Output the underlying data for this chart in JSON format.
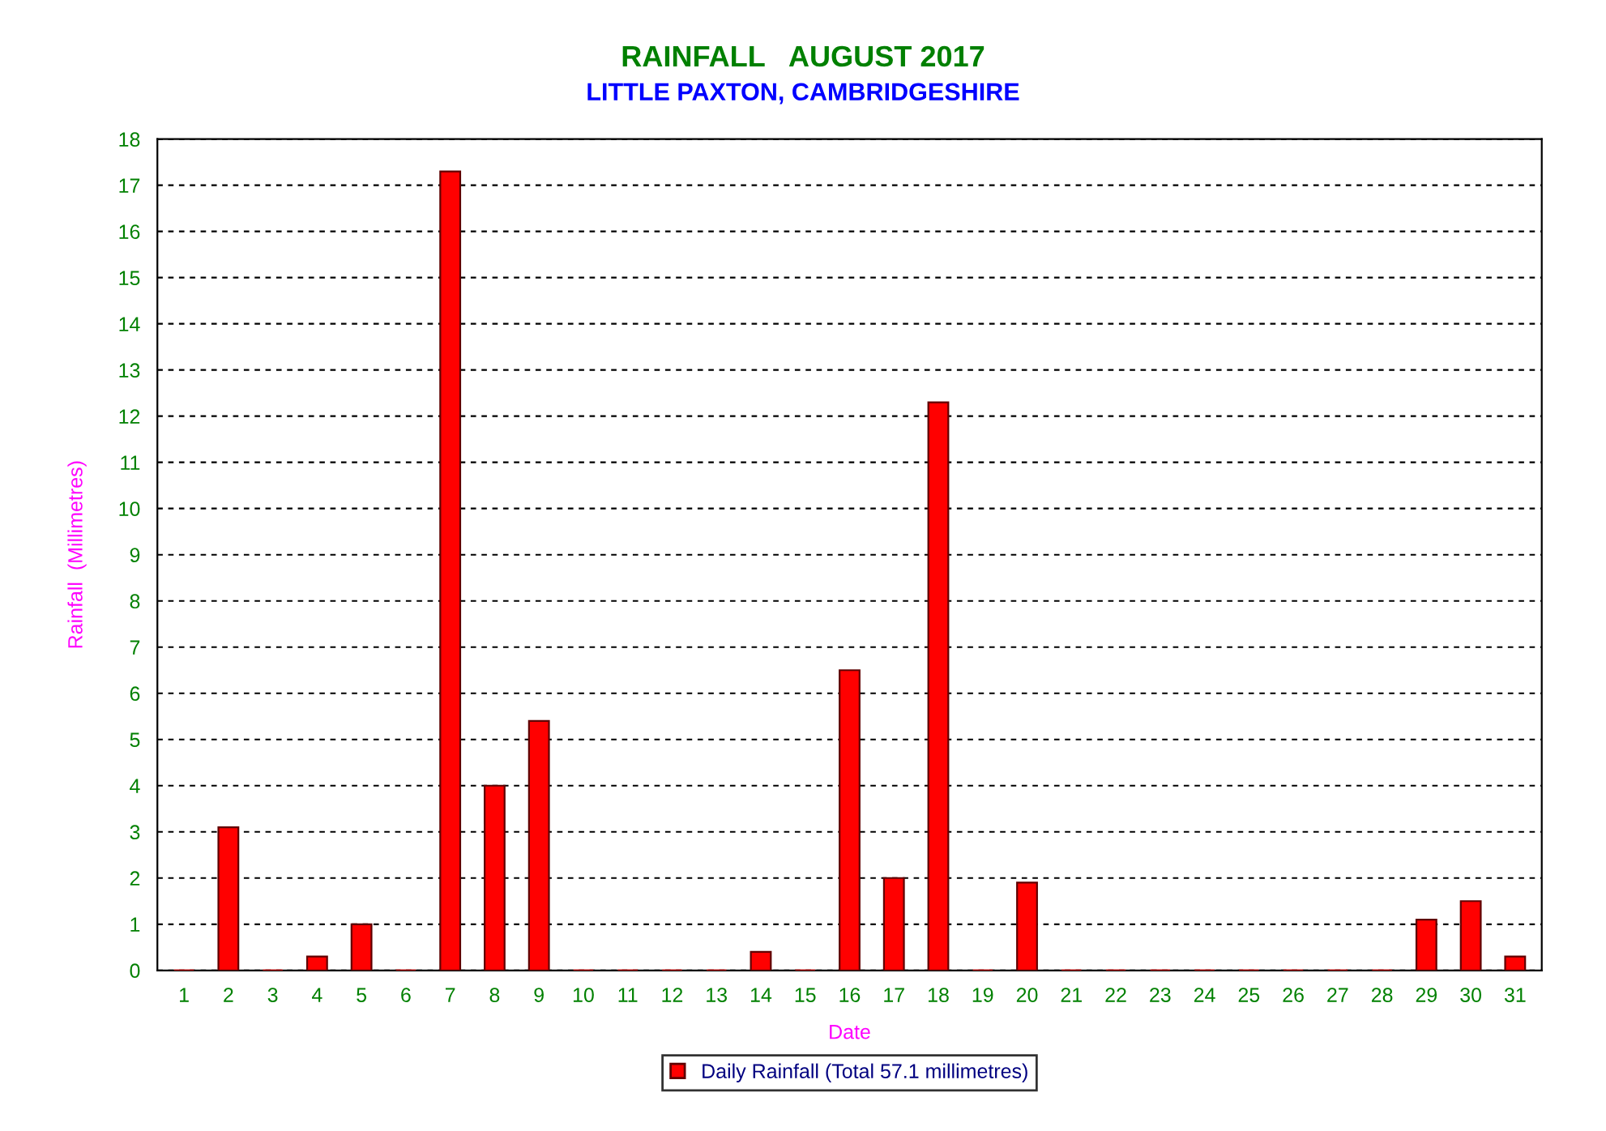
{
  "chart_data": {
    "type": "bar",
    "title": "RAINFALL   AUGUST 2017",
    "subtitle": "LITTLE PAXTON, CAMBRIDGESHIRE",
    "xlabel": "Date",
    "ylabel": "Rainfall  (Millimetres)",
    "categories": [
      "1",
      "2",
      "3",
      "4",
      "5",
      "6",
      "7",
      "8",
      "9",
      "10",
      "11",
      "12",
      "13",
      "14",
      "15",
      "16",
      "17",
      "18",
      "19",
      "20",
      "21",
      "22",
      "23",
      "24",
      "25",
      "26",
      "27",
      "28",
      "29",
      "30",
      "31"
    ],
    "series": [
      {
        "name": "Daily Rainfall (Total 57.1 millimetres)",
        "color": "#ff0000",
        "values": [
          0,
          3.1,
          0,
          0.3,
          1.0,
          0,
          17.3,
          4.0,
          5.4,
          0,
          0,
          0,
          0,
          0.4,
          0,
          6.5,
          2.0,
          12.3,
          0,
          1.9,
          0,
          0,
          0,
          0,
          0,
          0,
          0,
          0,
          1.1,
          1.5,
          0.3
        ]
      }
    ],
    "ylim": [
      0,
      18
    ],
    "yticks": [
      0,
      1,
      2,
      3,
      4,
      5,
      6,
      7,
      8,
      9,
      10,
      11,
      12,
      13,
      14,
      15,
      16,
      17,
      18
    ],
    "grid": "y",
    "legend": "bottom"
  }
}
